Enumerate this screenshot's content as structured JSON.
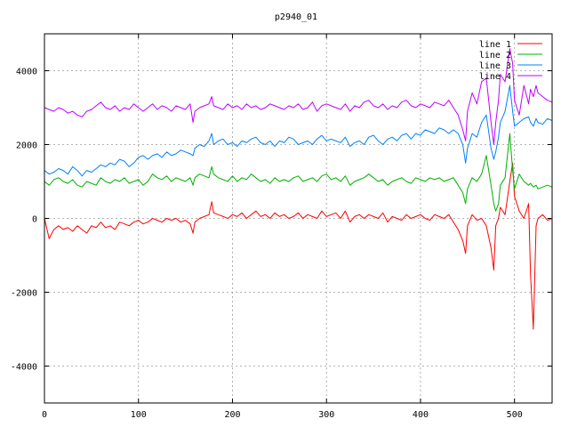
{
  "chart_data": {
    "type": "line",
    "title": "p2940_01",
    "xlabel": "",
    "ylabel": "",
    "xlim": [
      0,
      540
    ],
    "ylim": [
      -5000,
      5000
    ],
    "x_ticks": [
      0,
      100,
      200,
      300,
      400,
      500
    ],
    "y_ticks": [
      -4000,
      -2000,
      0,
      2000,
      4000
    ],
    "grid": true,
    "legend_position": "top-right",
    "series": [
      {
        "name": "line 1",
        "color": "#ff0000",
        "x": [
          0,
          5,
          10,
          15,
          20,
          25,
          30,
          35,
          40,
          45,
          50,
          55,
          60,
          65,
          70,
          75,
          80,
          85,
          90,
          95,
          100,
          105,
          110,
          115,
          120,
          125,
          130,
          135,
          140,
          145,
          150,
          155,
          158,
          160,
          165,
          170,
          175,
          178,
          180,
          185,
          190,
          195,
          200,
          205,
          210,
          215,
          220,
          225,
          230,
          235,
          240,
          245,
          250,
          255,
          260,
          265,
          270,
          275,
          280,
          285,
          290,
          295,
          300,
          305,
          310,
          315,
          320,
          325,
          330,
          335,
          340,
          345,
          350,
          355,
          360,
          365,
          370,
          375,
          380,
          385,
          390,
          395,
          400,
          405,
          410,
          415,
          420,
          425,
          430,
          435,
          440,
          445,
          448,
          450,
          455,
          460,
          465,
          470,
          475,
          478,
          480,
          483,
          485,
          490,
          495,
          498,
          500,
          505,
          510,
          515,
          517,
          520,
          523,
          525,
          530,
          535,
          540
        ],
        "y": [
          0,
          -550,
          -300,
          -200,
          -300,
          -250,
          -350,
          -200,
          -300,
          -400,
          -200,
          -250,
          -100,
          -250,
          -200,
          -300,
          -100,
          -150,
          -200,
          -100,
          -50,
          -150,
          -100,
          0,
          -50,
          -100,
          0,
          -50,
          0,
          -100,
          -50,
          -150,
          -400,
          -100,
          0,
          50,
          100,
          450,
          150,
          100,
          50,
          0,
          100,
          50,
          150,
          0,
          100,
          200,
          50,
          100,
          0,
          150,
          50,
          100,
          0,
          50,
          150,
          0,
          100,
          50,
          0,
          200,
          50,
          100,
          150,
          0,
          200,
          -100,
          50,
          100,
          0,
          100,
          50,
          0,
          150,
          -100,
          50,
          0,
          -50,
          100,
          0,
          50,
          100,
          0,
          -50,
          100,
          50,
          0,
          100,
          -100,
          -300,
          -600,
          -950,
          -200,
          100,
          -50,
          0,
          -200,
          -800,
          -1400,
          -200,
          0,
          300,
          100,
          1000,
          1500,
          600,
          200,
          0,
          400,
          -1500,
          -3000,
          -200,
          0,
          100,
          -50,
          0
        ]
      },
      {
        "name": "line 2",
        "color": "#00b000",
        "x": [
          0,
          5,
          10,
          15,
          20,
          25,
          30,
          35,
          40,
          45,
          50,
          55,
          60,
          65,
          70,
          75,
          80,
          85,
          90,
          95,
          100,
          105,
          110,
          115,
          120,
          125,
          130,
          135,
          140,
          145,
          150,
          155,
          158,
          160,
          165,
          170,
          175,
          178,
          180,
          185,
          190,
          195,
          200,
          205,
          210,
          215,
          220,
          225,
          230,
          235,
          240,
          245,
          250,
          255,
          260,
          265,
          270,
          275,
          280,
          285,
          290,
          295,
          300,
          305,
          310,
          315,
          320,
          325,
          330,
          335,
          340,
          345,
          350,
          355,
          360,
          365,
          370,
          375,
          380,
          385,
          390,
          395,
          400,
          405,
          410,
          415,
          420,
          425,
          430,
          435,
          440,
          445,
          448,
          450,
          455,
          460,
          465,
          470,
          475,
          478,
          480,
          483,
          485,
          490,
          495,
          498,
          500,
          505,
          510,
          515,
          517,
          520,
          523,
          525,
          530,
          535,
          540
        ],
        "y": [
          1000,
          900,
          1050,
          1100,
          1000,
          950,
          1050,
          900,
          850,
          1000,
          950,
          900,
          1100,
          1000,
          950,
          1050,
          1000,
          1100,
          950,
          1000,
          1050,
          900,
          1000,
          1200,
          1100,
          1050,
          1150,
          1000,
          1100,
          1050,
          1000,
          1100,
          900,
          1100,
          1200,
          1150,
          1100,
          1400,
          1200,
          1100,
          1050,
          1000,
          1150,
          1000,
          1100,
          1050,
          1200,
          1100,
          1000,
          1050,
          950,
          1100,
          1000,
          1050,
          1000,
          1100,
          1150,
          1000,
          1050,
          1100,
          1000,
          1150,
          1200,
          1050,
          1100,
          1000,
          1150,
          900,
          1000,
          1050,
          1100,
          1200,
          1100,
          1000,
          1050,
          900,
          1000,
          1050,
          1100,
          1000,
          950,
          1100,
          1050,
          1000,
          1100,
          1050,
          1100,
          1000,
          1050,
          1100,
          900,
          700,
          400,
          800,
          1100,
          1000,
          1200,
          1700,
          900,
          400,
          200,
          400,
          900,
          1100,
          2300,
          1300,
          800,
          1200,
          1000,
          900,
          950,
          850,
          900,
          800,
          850,
          900,
          850
        ]
      },
      {
        "name": "line 3",
        "color": "#0080ff",
        "x": [
          0,
          5,
          10,
          15,
          20,
          25,
          30,
          35,
          40,
          45,
          50,
          55,
          60,
          65,
          70,
          75,
          80,
          85,
          90,
          95,
          100,
          105,
          110,
          115,
          120,
          125,
          130,
          135,
          140,
          145,
          150,
          155,
          158,
          160,
          165,
          170,
          175,
          178,
          180,
          185,
          190,
          195,
          200,
          205,
          210,
          215,
          220,
          225,
          230,
          235,
          240,
          245,
          250,
          255,
          260,
          265,
          270,
          275,
          280,
          285,
          290,
          295,
          300,
          305,
          310,
          315,
          320,
          325,
          330,
          335,
          340,
          345,
          350,
          355,
          360,
          365,
          370,
          375,
          380,
          385,
          390,
          395,
          400,
          405,
          410,
          415,
          420,
          425,
          430,
          435,
          440,
          445,
          448,
          450,
          455,
          460,
          465,
          470,
          475,
          478,
          480,
          483,
          485,
          490,
          495,
          498,
          500,
          505,
          510,
          515,
          517,
          520,
          523,
          525,
          530,
          535,
          540
        ],
        "y": [
          1300,
          1200,
          1250,
          1350,
          1300,
          1200,
          1400,
          1300,
          1150,
          1300,
          1250,
          1350,
          1450,
          1400,
          1500,
          1450,
          1600,
          1550,
          1400,
          1500,
          1650,
          1700,
          1600,
          1700,
          1750,
          1650,
          1800,
          1700,
          1750,
          1850,
          1800,
          1750,
          1700,
          1900,
          2000,
          1950,
          2100,
          2300,
          2000,
          2100,
          2150,
          2000,
          2050,
          1950,
          2100,
          2050,
          2150,
          2200,
          2050,
          2000,
          2100,
          1950,
          2100,
          2050,
          2200,
          2150,
          2000,
          2050,
          2100,
          2000,
          2150,
          2250,
          2100,
          2150,
          2100,
          2050,
          2200,
          1950,
          2050,
          2100,
          2000,
          2200,
          2250,
          2100,
          2000,
          2150,
          2200,
          2100,
          2250,
          2300,
          2150,
          2300,
          2250,
          2400,
          2350,
          2300,
          2450,
          2400,
          2300,
          2400,
          2300,
          2000,
          1500,
          1900,
          2300,
          2200,
          2600,
          2800,
          1900,
          1600,
          1800,
          2200,
          2600,
          2900,
          3600,
          2900,
          2500,
          2600,
          2700,
          2750,
          2600,
          2500,
          2700,
          2600,
          2550,
          2700,
          2650
        ]
      },
      {
        "name": "line 4",
        "color": "#c000ff",
        "x": [
          0,
          5,
          10,
          15,
          20,
          25,
          30,
          35,
          40,
          45,
          50,
          55,
          60,
          65,
          70,
          75,
          80,
          85,
          90,
          95,
          100,
          105,
          110,
          115,
          120,
          125,
          130,
          135,
          140,
          145,
          150,
          155,
          158,
          160,
          165,
          170,
          175,
          178,
          180,
          185,
          190,
          195,
          200,
          205,
          210,
          215,
          220,
          225,
          230,
          235,
          240,
          245,
          250,
          255,
          260,
          265,
          270,
          275,
          280,
          285,
          290,
          295,
          300,
          305,
          310,
          315,
          320,
          325,
          330,
          335,
          340,
          345,
          350,
          355,
          360,
          365,
          370,
          375,
          380,
          385,
          390,
          395,
          400,
          405,
          410,
          415,
          420,
          425,
          430,
          435,
          440,
          445,
          448,
          450,
          455,
          460,
          465,
          470,
          475,
          478,
          480,
          483,
          485,
          490,
          495,
          498,
          500,
          505,
          510,
          515,
          517,
          520,
          523,
          525,
          530,
          535,
          540
        ],
        "y": [
          3000,
          2950,
          2900,
          3000,
          2950,
          2850,
          2900,
          2800,
          2750,
          2900,
          2950,
          3050,
          3150,
          3000,
          2950,
          3050,
          2900,
          3000,
          2950,
          3100,
          3000,
          2900,
          3000,
          3100,
          2950,
          3050,
          3000,
          2900,
          3050,
          3000,
          2950,
          3100,
          2600,
          2900,
          3000,
          3050,
          3100,
          3300,
          3050,
          3000,
          2950,
          3100,
          3000,
          3050,
          2950,
          3100,
          3000,
          3050,
          2950,
          3000,
          3100,
          3050,
          3000,
          2950,
          3050,
          3000,
          3100,
          2950,
          3000,
          3150,
          2900,
          3050,
          3100,
          3050,
          3000,
          2950,
          3100,
          2900,
          3050,
          3000,
          3150,
          3200,
          3050,
          3000,
          3100,
          2950,
          3050,
          3000,
          3150,
          3200,
          3050,
          3000,
          3100,
          3050,
          3000,
          3150,
          3100,
          3050,
          3200,
          3000,
          2800,
          2400,
          2100,
          2900,
          3400,
          3100,
          3700,
          3800,
          2600,
          2000,
          2600,
          3200,
          3900,
          3700,
          4600,
          4200,
          3200,
          2800,
          3600,
          3100,
          3500,
          3300,
          3600,
          3400,
          3300,
          3200,
          3150
        ]
      }
    ]
  }
}
